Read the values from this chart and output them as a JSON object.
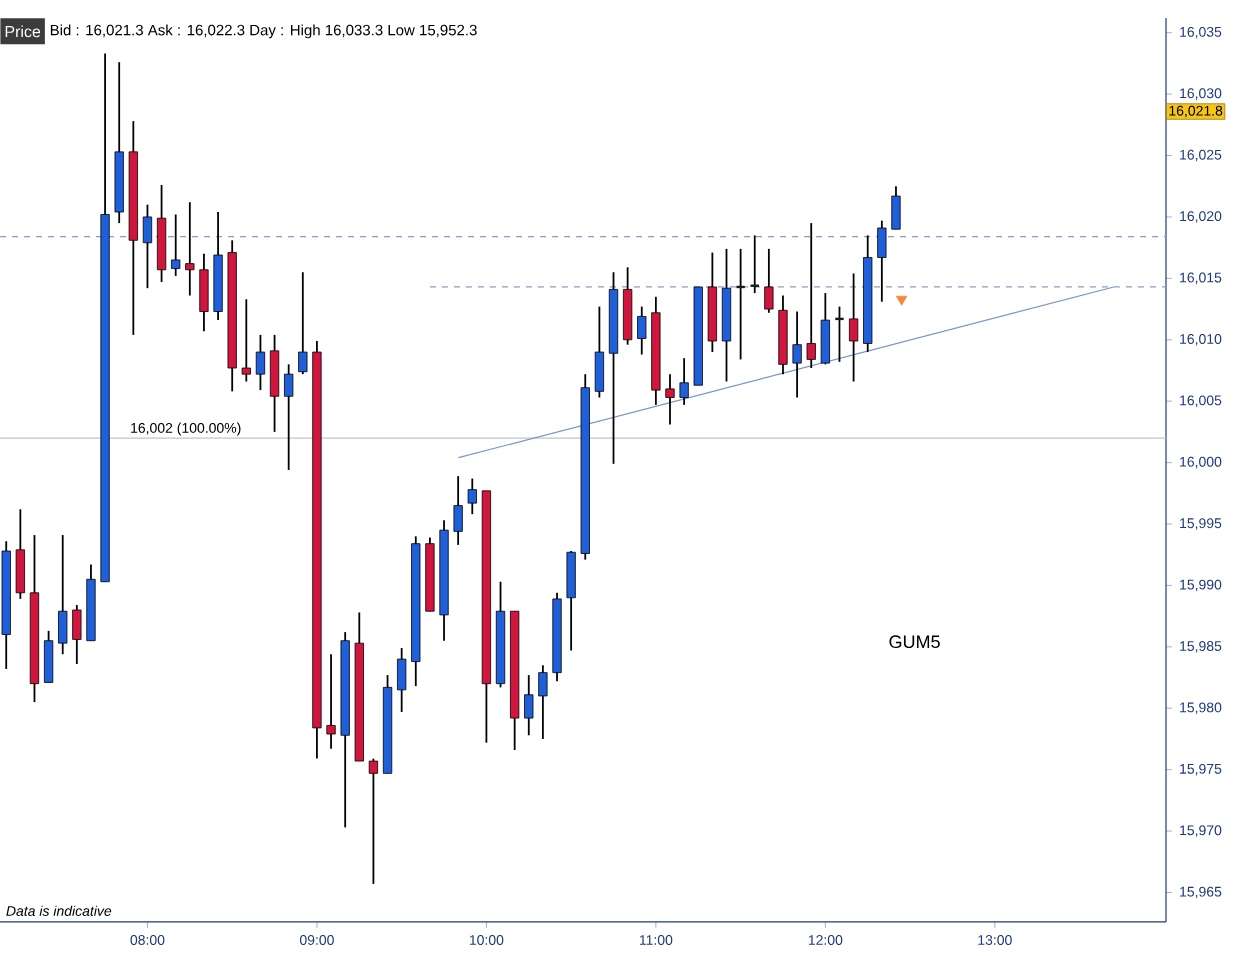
{
  "chart_data": {
    "type": "candlestick",
    "title": "Price",
    "subtitle": "Bid : 16,021.3 Ask : 16,022.3 Day : High 16,033.3 Low 15,952.3",
    "x": [
      7.1667,
      7.25,
      7.3333,
      7.4167,
      7.5,
      7.5833,
      7.6667,
      7.75,
      7.8333,
      7.9167,
      8,
      8.0833,
      8.1667,
      8.25,
      8.3333,
      8.4167,
      8.5,
      8.5833,
      8.6667,
      8.75,
      8.8333,
      8.9167,
      9,
      9.0833,
      9.1667,
      9.25,
      9.3333,
      9.4167,
      9.5,
      9.5833,
      9.6667,
      9.75,
      9.8333,
      9.9167,
      10,
      10.0833,
      10.1667,
      10.25,
      10.3333,
      10.4167,
      10.5,
      10.5833,
      10.6667,
      10.75,
      10.8333,
      10.9167,
      11,
      11.0833,
      11.1667,
      11.25,
      11.3333,
      11.4167,
      11.5,
      11.5833,
      11.6667,
      11.75,
      11.8333,
      11.9167,
      12,
      12.0833,
      12.1667,
      12.25,
      12.3333,
      12.4167
    ],
    "ohlc": [
      [
        15986.0,
        15993.6,
        15983.2,
        15992.8
      ],
      [
        15992.9,
        15996.2,
        15988.9,
        15989.4
      ],
      [
        15989.4,
        15994.1,
        15980.5,
        15982.0
      ],
      [
        15982.1,
        15986.3,
        15982.1,
        15985.5
      ],
      [
        15985.3,
        15994.1,
        15984.4,
        15987.9
      ],
      [
        15988.0,
        15988.4,
        15983.6,
        15985.6
      ],
      [
        15985.5,
        15991.7,
        15985.5,
        15990.5
      ],
      [
        15990.3,
        16033.3,
        15990.3,
        16020.2
      ],
      [
        16020.4,
        16032.6,
        16019.5,
        16025.3
      ],
      [
        16025.3,
        16027.8,
        16010.4,
        16018.1
      ],
      [
        16017.9,
        16021.0,
        16014.2,
        16020.0
      ],
      [
        16019.9,
        16022.6,
        16014.7,
        16015.7
      ],
      [
        16015.8,
        16020.2,
        16015.2,
        16016.5
      ],
      [
        16016.2,
        16021.2,
        16013.6,
        16015.7
      ],
      [
        16015.7,
        16017.0,
        16010.7,
        16012.3
      ],
      [
        16012.3,
        16020.4,
        16011.6,
        16016.9
      ],
      [
        16017.1,
        16018.1,
        16005.8,
        16007.7
      ],
      [
        16007.7,
        16013.3,
        16006.6,
        16007.2
      ],
      [
        16007.2,
        16010.4,
        16005.9,
        16009.0
      ],
      [
        16009.1,
        16010.4,
        16002.5,
        16005.4
      ],
      [
        16005.4,
        16008.0,
        15999.4,
        16007.2
      ],
      [
        16007.4,
        16015.5,
        16007.2,
        16009.0
      ],
      [
        16009.0,
        16009.9,
        15975.9,
        15978.4
      ],
      [
        15978.6,
        15984.4,
        15976.7,
        15977.9
      ],
      [
        15977.8,
        15986.2,
        15970.3,
        15985.5
      ],
      [
        15985.3,
        15987.8,
        15975.7,
        15975.7
      ],
      [
        15975.7,
        15975.9,
        15965.7,
        15974.7
      ],
      [
        15974.7,
        15982.7,
        15974.7,
        15981.7
      ],
      [
        15981.5,
        15984.9,
        15979.7,
        15984.0
      ],
      [
        15983.8,
        15994.0,
        15981.8,
        15993.4
      ],
      [
        15993.4,
        15993.9,
        15987.9,
        15987.9
      ],
      [
        15987.6,
        15995.3,
        15985.5,
        15994.5
      ],
      [
        15994.4,
        15998.9,
        15993.3,
        15996.5
      ],
      [
        15996.7,
        15998.7,
        15995.8,
        15997.8
      ],
      [
        15997.7,
        15997.7,
        15977.2,
        15982.0
      ],
      [
        15982.0,
        15990.3,
        15981.7,
        15987.9
      ],
      [
        15987.9,
        15987.9,
        15976.6,
        15979.2
      ],
      [
        15979.2,
        15982.7,
        15977.8,
        15981.1
      ],
      [
        15981.0,
        15983.5,
        15977.5,
        15982.9
      ],
      [
        15982.9,
        15989.4,
        15982.2,
        15988.9
      ],
      [
        15989.0,
        15992.8,
        15984.7,
        15992.7
      ],
      [
        15992.6,
        16007.2,
        15992.1,
        16006.1
      ],
      [
        16005.8,
        16012.7,
        16005.3,
        16009.0
      ],
      [
        16008.9,
        16015.5,
        15999.9,
        16014.1
      ],
      [
        16014.1,
        16015.9,
        16009.6,
        16010.0
      ],
      [
        16010.1,
        16012.7,
        16008.8,
        16011.9
      ],
      [
        16012.2,
        16013.5,
        16004.7,
        16005.9
      ],
      [
        16006.0,
        16007.2,
        16003.1,
        16005.3
      ],
      [
        16005.3,
        16008.5,
        16004.7,
        16006.5
      ],
      [
        16006.3,
        16014.3,
        16006.3,
        16014.3
      ],
      [
        16014.3,
        16017.1,
        16009.0,
        16009.9
      ],
      [
        16009.9,
        16017.4,
        16006.6,
        16014.2
      ],
      [
        16014.3,
        16017.4,
        16008.4,
        16014.3
      ],
      [
        16014.4,
        16018.5,
        16013.8,
        16014.4
      ],
      [
        16014.3,
        16017.4,
        16012.2,
        16012.5
      ],
      [
        16012.4,
        16013.6,
        16007.2,
        16008.0
      ],
      [
        16008.1,
        16012.3,
        16005.3,
        16009.6
      ],
      [
        16009.7,
        16019.5,
        16007.7,
        16008.4
      ],
      [
        16008.1,
        16013.8,
        16008.0,
        16011.6
      ],
      [
        16011.7,
        16012.7,
        16008.2,
        16011.7
      ],
      [
        16011.7,
        16015.4,
        16006.6,
        16009.9
      ],
      [
        16009.7,
        16018.5,
        16009.0,
        16016.7
      ],
      [
        16016.7,
        16019.7,
        16013.1,
        16019.1
      ],
      [
        16019.0,
        16022.5,
        16019.0,
        16021.7
      ]
    ],
    "colors": [
      "#1f5fd9",
      "#d0163c",
      "#d0163c",
      "#1f5fd9",
      "#1f5fd9",
      "#d0163c",
      "#1f5fd9",
      "#1f5fd9",
      "#1f5fd9",
      "#d0163c",
      "#1f5fd9",
      "#d0163c",
      "#1f5fd9",
      "#d0163c",
      "#d0163c",
      "#1f5fd9",
      "#d0163c",
      "#d0163c",
      "#1f5fd9",
      "#d0163c",
      "#1f5fd9",
      "#1f5fd9",
      "#d0163c",
      "#d0163c",
      "#1f5fd9",
      "#d0163c",
      "#d0163c",
      "#1f5fd9",
      "#1f5fd9",
      "#1f5fd9",
      "#d0163c",
      "#1f5fd9",
      "#1f5fd9",
      "#1f5fd9",
      "#d0163c",
      "#1f5fd9",
      "#d0163c",
      "#1f5fd9",
      "#1f5fd9",
      "#1f5fd9",
      "#1f5fd9",
      "#1f5fd9",
      "#1f5fd9",
      "#1f5fd9",
      "#d0163c",
      "#1f5fd9",
      "#d0163c",
      "#d0163c",
      "#1f5fd9",
      "#1f5fd9",
      "#d0163c",
      "#1f5fd9",
      "#1a1a1a",
      "#1a1a1a",
      "#d0163c",
      "#d0163c",
      "#1f5fd9",
      "#d0163c",
      "#1f5fd9",
      "#1a1a1a",
      "#d0163c",
      "#1f5fd9",
      "#1f5fd9",
      "#1f5fd9"
    ],
    "series": [
      {
        "type": "line",
        "x": [
          9.6667,
          14.01
        ],
        "values": [
          16014.3,
          16014.3
        ],
        "color": "#8a9cc8",
        "line_style": "dashed"
      },
      {
        "type": "line",
        "x": [
          9.835,
          13.702
        ],
        "values": [
          16000.4,
          16014.3
        ],
        "color": "#7894cc",
        "line_style": "solid"
      },
      {
        "type": "scatter",
        "x": [
          12.45
        ],
        "values": [
          16013.3
        ],
        "color": "#f08a3c",
        "marker": "triangle"
      }
    ],
    "ref_lines": [
      {
        "axis": "y",
        "value": 16018.4,
        "color": "#8a9cc8",
        "line_style": "dashed"
      },
      {
        "axis": "y",
        "value": 16002,
        "label": "16,002 (100.00%)",
        "color": "#c4c4c4",
        "line_style": "solid"
      }
    ],
    "annotations": [
      "Data is indicative",
      "GUM5",
      "16,021.8"
    ],
    "xlim": [
      7.13,
      14.01
    ],
    "ylim": [
      15962.6,
      16036.2
    ],
    "xticks": [
      {
        "value": 8,
        "label": "08:00"
      },
      {
        "value": 9,
        "label": "09:00"
      },
      {
        "value": 10,
        "label": "10:00"
      },
      {
        "value": 11,
        "label": "11:00"
      },
      {
        "value": 12,
        "label": "12:00"
      },
      {
        "value": 13,
        "label": "13:00"
      }
    ],
    "yticks": [
      {
        "value": 15965,
        "label": "15,965"
      },
      {
        "value": 15970,
        "label": "15,970"
      },
      {
        "value": 15975,
        "label": "15,975"
      },
      {
        "value": 15980,
        "label": "15,980"
      },
      {
        "value": 15985,
        "label": "15,985"
      },
      {
        "value": 15990,
        "label": "15,990"
      },
      {
        "value": 15995,
        "label": "15,995"
      },
      {
        "value": 16000,
        "label": "16,000"
      },
      {
        "value": 16005,
        "label": "16,005"
      },
      {
        "value": 16010,
        "label": "16,010"
      },
      {
        "value": 16015,
        "label": "16,015"
      },
      {
        "value": 16020,
        "label": "16,020"
      },
      {
        "value": 16025,
        "label": "16,025"
      },
      {
        "value": 16030,
        "label": "16,030"
      },
      {
        "value": 16035,
        "label": "16,035"
      }
    ]
  }
}
